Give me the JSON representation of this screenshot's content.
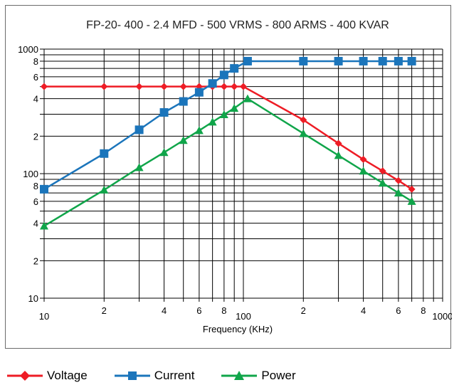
{
  "chart_data": {
    "type": "line",
    "title": "FP-20- 400 - 2.4 MFD - 500 VRMS - 800 ARMS - 400 KVAR",
    "xlabel": "Frequency (KHz)",
    "ylabel": "",
    "xscale": "log",
    "yscale": "log",
    "xlim": [
      10,
      1000
    ],
    "ylim": [
      10,
      1000
    ],
    "grid": true,
    "legend_position": "bottom",
    "x_tick_labels": [
      {
        "v": 10,
        "t": "10",
        "major": true
      },
      {
        "v": 20,
        "t": "2"
      },
      {
        "v": 40,
        "t": "4"
      },
      {
        "v": 60,
        "t": "6"
      },
      {
        "v": 80,
        "t": "8"
      },
      {
        "v": 100,
        "t": "100",
        "major": true
      },
      {
        "v": 200,
        "t": "2"
      },
      {
        "v": 400,
        "t": "4"
      },
      {
        "v": 600,
        "t": "6"
      },
      {
        "v": 800,
        "t": "8"
      },
      {
        "v": 1000,
        "t": "1000",
        "major": true
      }
    ],
    "y_tick_labels": [
      {
        "v": 10,
        "t": "10"
      },
      {
        "v": 20,
        "t": "2"
      },
      {
        "v": 40,
        "t": "4"
      },
      {
        "v": 60,
        "t": "6"
      },
      {
        "v": 80,
        "t": "8"
      },
      {
        "v": 100,
        "t": "100"
      },
      {
        "v": 200,
        "t": "2"
      },
      {
        "v": 400,
        "t": "4"
      },
      {
        "v": 600,
        "t": "6"
      },
      {
        "v": 800,
        "t": "8"
      },
      {
        "v": 1000,
        "t": "1000"
      }
    ],
    "series": [
      {
        "name": "Voltage",
        "color": "#ee1c25",
        "marker": "diamond",
        "points": [
          [
            10,
            500
          ],
          [
            20,
            500
          ],
          [
            30,
            500
          ],
          [
            40,
            500
          ],
          [
            50,
            500
          ],
          [
            60,
            500
          ],
          [
            70,
            500
          ],
          [
            80,
            500
          ],
          [
            90,
            500
          ],
          [
            100,
            500
          ],
          [
            200,
            270
          ],
          [
            300,
            175
          ],
          [
            400,
            130
          ],
          [
            500,
            105
          ],
          [
            600,
            88
          ],
          [
            700,
            75
          ]
        ]
      },
      {
        "name": "Current",
        "color": "#1b75bb",
        "marker": "square",
        "points": [
          [
            10,
            75
          ],
          [
            20,
            145
          ],
          [
            30,
            225
          ],
          [
            40,
            310
          ],
          [
            50,
            380
          ],
          [
            60,
            450
          ],
          [
            70,
            530
          ],
          [
            80,
            620
          ],
          [
            90,
            700
          ],
          [
            105,
            800
          ],
          [
            200,
            800
          ],
          [
            300,
            800
          ],
          [
            400,
            800
          ],
          [
            500,
            800
          ],
          [
            600,
            800
          ],
          [
            700,
            800
          ]
        ]
      },
      {
        "name": "Power",
        "color": "#10a54a",
        "marker": "triangle",
        "points": [
          [
            10,
            38
          ],
          [
            20,
            74
          ],
          [
            30,
            112
          ],
          [
            40,
            148
          ],
          [
            50,
            185
          ],
          [
            60,
            222
          ],
          [
            70,
            260
          ],
          [
            80,
            298
          ],
          [
            90,
            335
          ],
          [
            105,
            400
          ],
          [
            200,
            210
          ],
          [
            300,
            140
          ],
          [
            400,
            105
          ],
          [
            500,
            84
          ],
          [
            600,
            70
          ],
          [
            700,
            60
          ]
        ]
      }
    ]
  }
}
